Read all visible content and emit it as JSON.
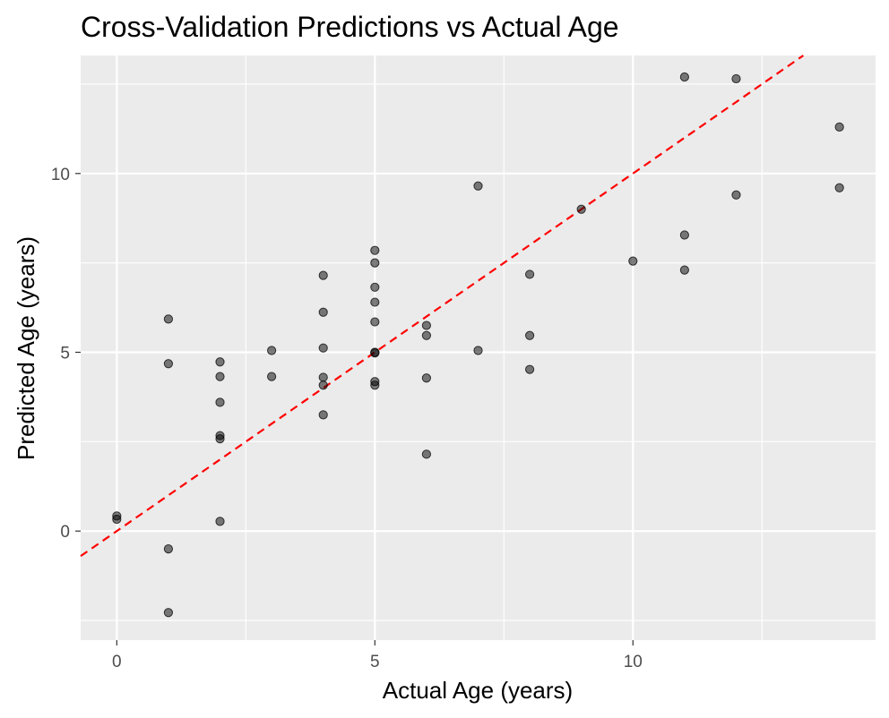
{
  "chart_data": {
    "type": "scatter",
    "title": "Cross-Validation Predictions vs Actual Age",
    "xlabel": "Actual Age (years)",
    "ylabel": "Predicted Age (years)",
    "xlim": [
      -0.7,
      14.7
    ],
    "ylim": [
      -3.05,
      13.3
    ],
    "x_ticks": [
      0,
      5,
      10
    ],
    "y_ticks": [
      0,
      5,
      10
    ],
    "x_tick_labels": [
      "0",
      "5",
      "10"
    ],
    "y_tick_labels": [
      "0",
      "5",
      "10"
    ],
    "grid": true,
    "legend": "none",
    "background_color": "#EBEBEB",
    "gridline_color": "#FFFFFF",
    "point_color": "#000000",
    "point_opacity": 0.5,
    "reference_line": {
      "type": "identity",
      "slope": 1,
      "intercept": 0,
      "color": "#FF0000",
      "style": "dashed"
    },
    "points": [
      {
        "x": 0,
        "y": 0.42
      },
      {
        "x": 0,
        "y": 0.33
      },
      {
        "x": 1,
        "y": 5.93
      },
      {
        "x": 1,
        "y": 4.68
      },
      {
        "x": 1,
        "y": -0.5
      },
      {
        "x": 1,
        "y": -2.28
      },
      {
        "x": 2,
        "y": 4.73
      },
      {
        "x": 2,
        "y": 4.32
      },
      {
        "x": 2,
        "y": 3.6
      },
      {
        "x": 2,
        "y": 2.67
      },
      {
        "x": 2,
        "y": 2.58
      },
      {
        "x": 2,
        "y": 0.27
      },
      {
        "x": 3,
        "y": 5.05
      },
      {
        "x": 3,
        "y": 4.32
      },
      {
        "x": 4,
        "y": 7.15
      },
      {
        "x": 4,
        "y": 6.12
      },
      {
        "x": 4,
        "y": 5.12
      },
      {
        "x": 4,
        "y": 4.3
      },
      {
        "x": 4,
        "y": 4.08
      },
      {
        "x": 4,
        "y": 3.25
      },
      {
        "x": 5,
        "y": 7.85
      },
      {
        "x": 5,
        "y": 7.5
      },
      {
        "x": 5,
        "y": 6.82
      },
      {
        "x": 5,
        "y": 6.4
      },
      {
        "x": 5,
        "y": 5.85
      },
      {
        "x": 5,
        "y": 5.0
      },
      {
        "x": 5,
        "y": 4.98
      },
      {
        "x": 5,
        "y": 4.18
      },
      {
        "x": 5,
        "y": 4.08
      },
      {
        "x": 6,
        "y": 5.75
      },
      {
        "x": 6,
        "y": 5.47
      },
      {
        "x": 6,
        "y": 4.28
      },
      {
        "x": 6,
        "y": 2.15
      },
      {
        "x": 7,
        "y": 9.65
      },
      {
        "x": 7,
        "y": 5.05
      },
      {
        "x": 8,
        "y": 7.18
      },
      {
        "x": 8,
        "y": 5.47
      },
      {
        "x": 8,
        "y": 4.52
      },
      {
        "x": 9,
        "y": 9.0
      },
      {
        "x": 10,
        "y": 7.55
      },
      {
        "x": 11,
        "y": 12.7
      },
      {
        "x": 11,
        "y": 8.28
      },
      {
        "x": 11,
        "y": 7.3
      },
      {
        "x": 12,
        "y": 12.65
      },
      {
        "x": 12,
        "y": 9.4
      },
      {
        "x": 14,
        "y": 11.3
      },
      {
        "x": 14,
        "y": 9.6
      }
    ]
  }
}
